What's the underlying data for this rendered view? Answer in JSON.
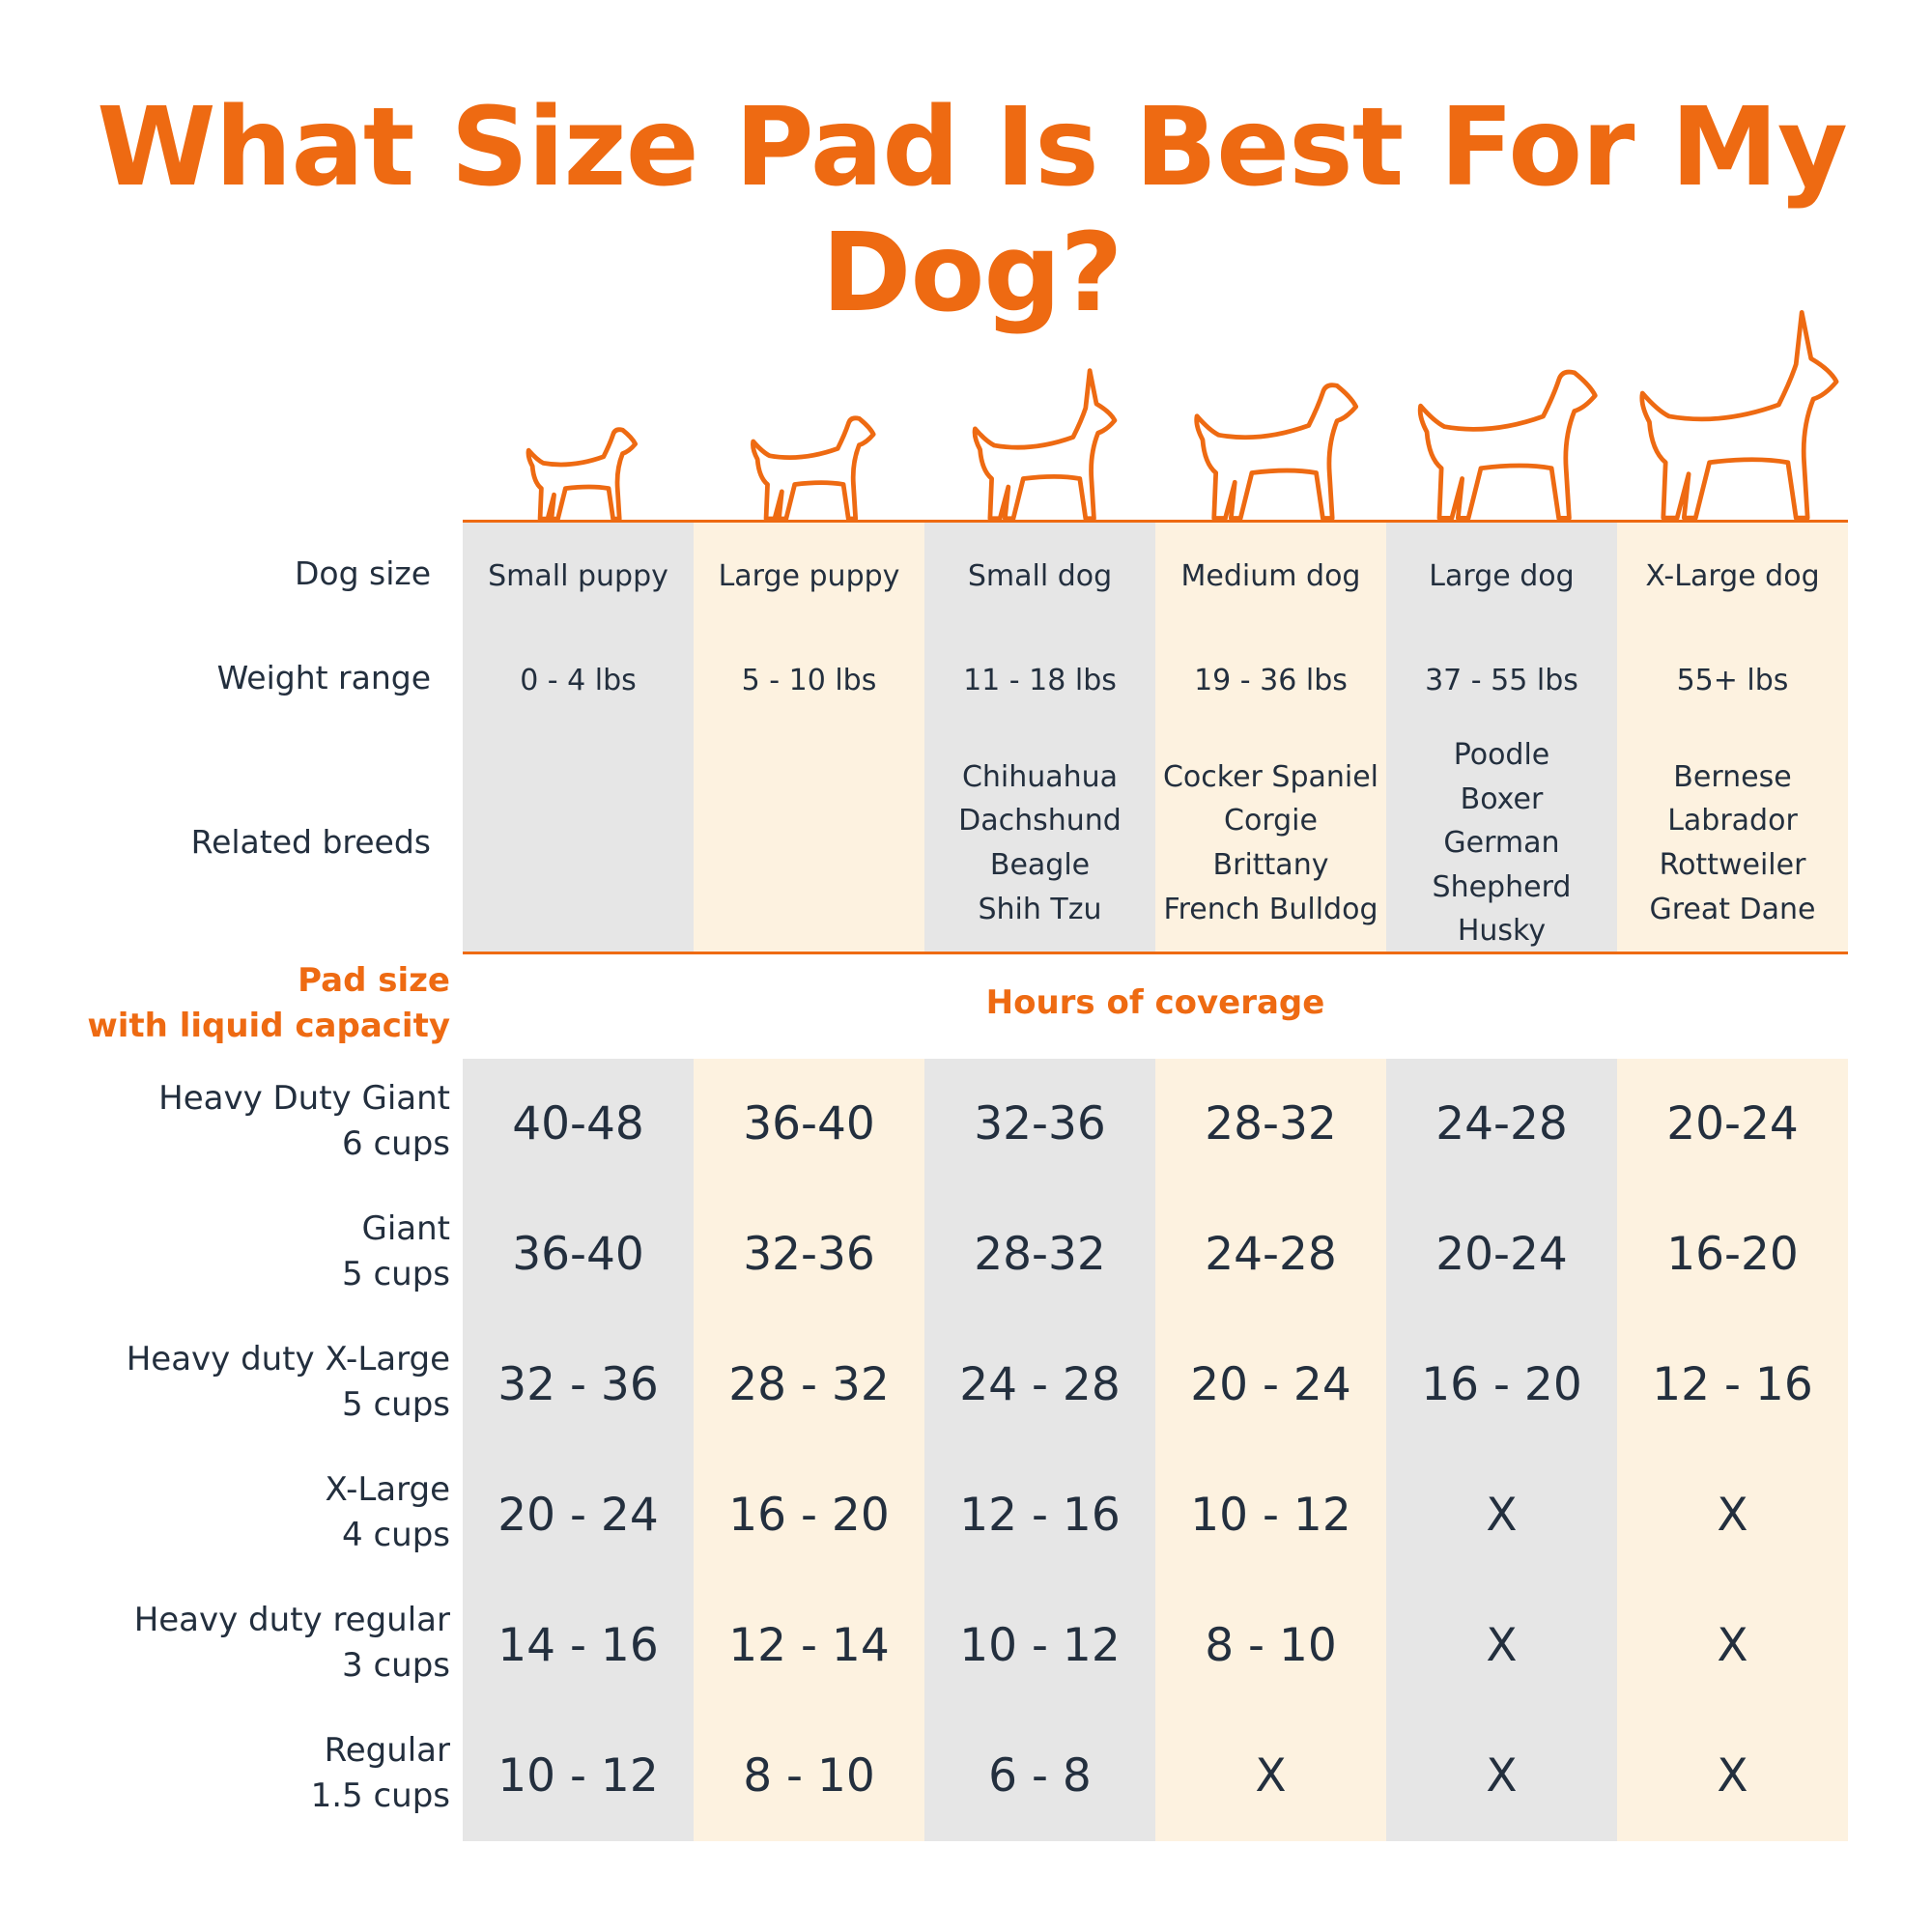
{
  "title": "What Size Pad Is Best For My Dog?",
  "colors": {
    "accent": "#ee6a12",
    "gray_column": "#e6e6e6",
    "cream_column": "#fdf2e0",
    "text": "#232f3e"
  },
  "row_labels": {
    "dog_size": "Dog size",
    "weight_range": "Weight range",
    "related_breeds": "Related breeds"
  },
  "columns": [
    {
      "icon": "small-puppy-icon",
      "dog_size": "Small puppy",
      "weight": "0 - 4 lbs",
      "breeds": []
    },
    {
      "icon": "large-puppy-icon",
      "dog_size": "Large puppy",
      "weight": "5 - 10 lbs",
      "breeds": []
    },
    {
      "icon": "small-dog-icon",
      "dog_size": "Small dog",
      "weight": "11 - 18 lbs",
      "breeds": [
        "Chihuahua",
        "Dachshund",
        "Beagle",
        "Shih Tzu"
      ]
    },
    {
      "icon": "medium-dog-icon",
      "dog_size": "Medium dog",
      "weight": "19 - 36 lbs",
      "breeds": [
        "Cocker Spaniel",
        "Corgie",
        "Brittany",
        "French Bulldog"
      ]
    },
    {
      "icon": "large-dog-icon",
      "dog_size": "Large dog",
      "weight": "37 - 55 lbs",
      "breeds": [
        "Poodle",
        "Boxer",
        "German",
        "Shepherd",
        "Husky"
      ]
    },
    {
      "icon": "x-large-dog-icon",
      "dog_size": "X-Large dog",
      "weight": "55+ lbs",
      "breeds": [
        "Bernese",
        "Labrador",
        "Rottweiler",
        "Great Dane"
      ]
    }
  ],
  "pad_section": {
    "label_line1": "Pad size",
    "label_line2": "with liquid capacity",
    "coverage_label": "Hours of coverage"
  },
  "pads": [
    {
      "name": "Heavy Duty Giant",
      "capacity": "6 cups",
      "hours": [
        "40-48",
        "36-40",
        "32-36",
        "28-32",
        "24-28",
        "20-24"
      ]
    },
    {
      "name": "Giant",
      "capacity": "5 cups",
      "hours": [
        "36-40",
        "32-36",
        "28-32",
        "24-28",
        "20-24",
        "16-20"
      ]
    },
    {
      "name": "Heavy duty X-Large",
      "capacity": "5 cups",
      "hours": [
        "32 - 36",
        "28 - 32",
        "24 - 28",
        "20 - 24",
        "16 - 20",
        "12 - 16"
      ]
    },
    {
      "name": "X-Large",
      "capacity": "4 cups",
      "hours": [
        "20 - 24",
        "16 - 20",
        "12 - 16",
        "10 - 12",
        "X",
        "X"
      ]
    },
    {
      "name": "Heavy duty regular",
      "capacity": "3 cups",
      "hours": [
        "14 - 16",
        "12 - 14",
        "10 - 12",
        "8 - 10",
        "X",
        "X"
      ]
    },
    {
      "name": "Regular",
      "capacity": "1.5 cups",
      "hours": [
        "10 - 12",
        "8 - 10",
        "6 - 8",
        "X",
        "X",
        "X"
      ]
    }
  ]
}
